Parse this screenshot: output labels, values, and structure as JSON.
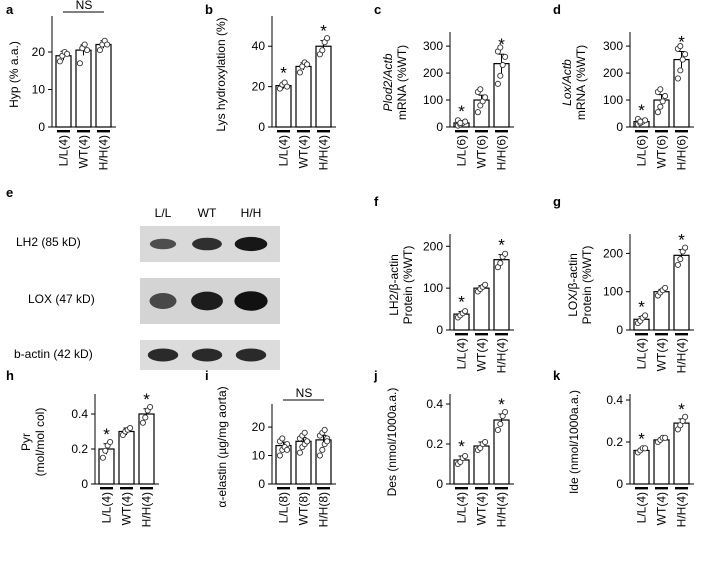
{
  "charts": [
    {
      "key": "a",
      "panel": "a",
      "type": "bar",
      "ylabel": "Hyp (% a.a.)",
      "ylabel_italic": "",
      "yticks": [
        0,
        10,
        20
      ],
      "ylim": [
        0,
        28
      ],
      "categories": [
        "L/L(4)",
        "WT(4)",
        "H/H(4)"
      ],
      "values": [
        19,
        20.5,
        22
      ],
      "errors": [
        1.2,
        1.4,
        1.0
      ],
      "points": [
        [
          17.5,
          19,
          20,
          19.5
        ],
        [
          17,
          21,
          22,
          20.5
        ],
        [
          20.5,
          22,
          23,
          22
        ]
      ],
      "stars": [
        false,
        false,
        false
      ],
      "ns": "NS"
    },
    {
      "key": "b",
      "panel": "b",
      "type": "bar",
      "ylabel": "Lys hydroxylation (%)",
      "ylabel_italic": "",
      "yticks": [
        0,
        20,
        40
      ],
      "ylim": [
        0,
        52
      ],
      "categories": [
        "L/L(4)",
        "WT(4)",
        "H/H(4)"
      ],
      "values": [
        20.5,
        30,
        40
      ],
      "errors": [
        1.5,
        1.8,
        2.8
      ],
      "points": [
        [
          19,
          21,
          22,
          20
        ],
        [
          27,
          30,
          32,
          31
        ],
        [
          36,
          38,
          42,
          44
        ]
      ],
      "stars": [
        true,
        false,
        true
      ],
      "ns": ""
    },
    {
      "key": "c",
      "panel": "c",
      "type": "bar",
      "ylabel": "mRNA (%WT)",
      "ylabel_italic": "Plod2/Actb",
      "yticks": [
        0,
        100,
        200,
        300
      ],
      "ylim": [
        0,
        330
      ],
      "categories": [
        "L/L(6)",
        "WT(6)",
        "H/H(6)"
      ],
      "values": [
        15,
        100,
        235
      ],
      "errors": [
        8,
        18,
        35
      ],
      "points": [
        [
          5,
          10,
          15,
          20,
          25,
          15
        ],
        [
          55,
          80,
          95,
          110,
          130,
          140
        ],
        [
          160,
          190,
          230,
          260,
          280,
          295
        ]
      ],
      "stars": [
        true,
        false,
        true
      ],
      "ns": ""
    },
    {
      "key": "d",
      "panel": "d",
      "type": "bar",
      "ylabel": "mRNA (%WT)",
      "ylabel_italic": "Lox/Actb",
      "yticks": [
        0,
        100,
        200,
        300
      ],
      "ylim": [
        0,
        330
      ],
      "categories": [
        "L/L(6)",
        "WT(6)",
        "H/H(6)"
      ],
      "values": [
        20,
        100,
        250
      ],
      "errors": [
        6,
        20,
        30
      ],
      "points": [
        [
          10,
          15,
          20,
          25,
          30,
          20
        ],
        [
          55,
          75,
          95,
          115,
          130,
          140
        ],
        [
          180,
          210,
          250,
          270,
          290,
          300
        ]
      ],
      "stars": [
        true,
        false,
        true
      ],
      "ns": ""
    },
    {
      "key": "f",
      "panel": "f",
      "type": "bar",
      "ylabel": "Protein (%WT)",
      "ylabel_line1": "LH2/β-actin",
      "ylabel_italic": "",
      "yticks": [
        0,
        100,
        200
      ],
      "ylim": [
        0,
        215
      ],
      "categories": [
        "L/L(4)",
        "WT(4)",
        "H/H(4)"
      ],
      "values": [
        38,
        100,
        168
      ],
      "errors": [
        6,
        6,
        12
      ],
      "points": [
        [
          30,
          35,
          40,
          45
        ],
        [
          92,
          98,
          103,
          108
        ],
        [
          150,
          160,
          175,
          182
        ]
      ],
      "stars": [
        true,
        false,
        true
      ],
      "ns": ""
    },
    {
      "key": "g",
      "panel": "g",
      "type": "bar",
      "ylabel": "Protein (%WT)",
      "ylabel_line1": "LOX/β-actin",
      "ylabel_italic": "",
      "yticks": [
        0,
        100,
        200
      ],
      "ylim": [
        0,
        235
      ],
      "categories": [
        "L/L(4)",
        "WT(4)",
        "H/H(4)"
      ],
      "values": [
        28,
        100,
        195
      ],
      "errors": [
        7,
        6,
        15
      ],
      "points": [
        [
          18,
          24,
          32,
          38
        ],
        [
          90,
          98,
          104,
          110
        ],
        [
          170,
          185,
          205,
          215
        ]
      ],
      "stars": [
        true,
        false,
        true
      ],
      "ns": ""
    },
    {
      "key": "h",
      "panel": "h",
      "type": "bar",
      "ylabel": "(mol/mol col)",
      "ylabel_line1": "Pyr",
      "ylabel_italic": "",
      "yticks": [
        0,
        0.2,
        0.4
      ],
      "ylim": [
        0,
        0.48
      ],
      "categories": [
        "L/L(4)",
        "WT(4)",
        "H/H(4)"
      ],
      "values": [
        0.2,
        0.3,
        0.4
      ],
      "errors": [
        0.03,
        0.02,
        0.03
      ],
      "points": [
        [
          0.15,
          0.19,
          0.22,
          0.24
        ],
        [
          0.28,
          0.3,
          0.31,
          0.32
        ],
        [
          0.35,
          0.38,
          0.42,
          0.44
        ]
      ],
      "stars": [
        true,
        false,
        true
      ],
      "ns": ""
    },
    {
      "key": "i",
      "panel": "i",
      "type": "bar",
      "ylabel": "α-elastin (µg/mg aorta)",
      "ylabel_italic": "",
      "yticks": [
        0,
        10,
        20
      ],
      "ylim": [
        0,
        26
      ],
      "categories": [
        "L/L(8)",
        "WT(8)",
        "H/H(8)"
      ],
      "values": [
        13.5,
        15,
        15.5
      ],
      "errors": [
        1.2,
        1.3,
        1.6
      ],
      "points": [
        [
          10,
          12,
          13,
          14,
          15,
          16,
          13,
          12
        ],
        [
          11,
          13,
          14,
          15,
          16,
          17,
          18,
          15
        ],
        [
          10,
          12,
          14,
          16,
          17,
          18,
          19,
          15
        ]
      ],
      "stars": [
        false,
        false,
        false
      ],
      "ns": "NS"
    },
    {
      "key": "j",
      "panel": "j",
      "type": "bar",
      "ylabel": "Des (nmol/1000a.a.)",
      "ylabel_italic": "",
      "yticks": [
        0,
        0.2,
        0.4
      ],
      "ylim": [
        0,
        0.42
      ],
      "categories": [
        "L/L(4)",
        "WT(4)",
        "H/H(4)"
      ],
      "values": [
        0.12,
        0.19,
        0.32
      ],
      "errors": [
        0.02,
        0.02,
        0.03
      ],
      "points": [
        [
          0.1,
          0.11,
          0.13,
          0.14
        ],
        [
          0.17,
          0.18,
          0.2,
          0.21
        ],
        [
          0.27,
          0.3,
          0.34,
          0.36
        ]
      ],
      "stars": [
        true,
        false,
        true
      ],
      "ns": ""
    },
    {
      "key": "k",
      "panel": "k",
      "type": "bar",
      "ylabel": "Ide (nmol/1000a.a.)",
      "ylabel_italic": "",
      "yticks": [
        0,
        0.2,
        0.4
      ],
      "ylim": [
        0,
        0.4
      ],
      "categories": [
        "L/L(4)",
        "WT(4)",
        "H/H(4)"
      ],
      "values": [
        0.16,
        0.21,
        0.29
      ],
      "errors": [
        0.01,
        0.01,
        0.02
      ],
      "points": [
        [
          0.15,
          0.16,
          0.17,
          0.17
        ],
        [
          0.2,
          0.21,
          0.22,
          0.22
        ],
        [
          0.26,
          0.28,
          0.3,
          0.32
        ]
      ],
      "stars": [
        true,
        false,
        true
      ],
      "ns": ""
    }
  ],
  "blot": {
    "panel": "e",
    "columns": [
      "L/L",
      "WT",
      "H/H"
    ],
    "rows": [
      {
        "label": "LH2 (85 kD)",
        "intensity": [
          0.45,
          0.7,
          0.9
        ]
      },
      {
        "label": "LOX (47 kD)",
        "intensity": [
          0.5,
          0.85,
          0.95
        ]
      },
      {
        "label": "b-actin (42 kD)",
        "intensity": [
          0.75,
          0.75,
          0.75
        ]
      }
    ]
  },
  "star_symbol": "*"
}
